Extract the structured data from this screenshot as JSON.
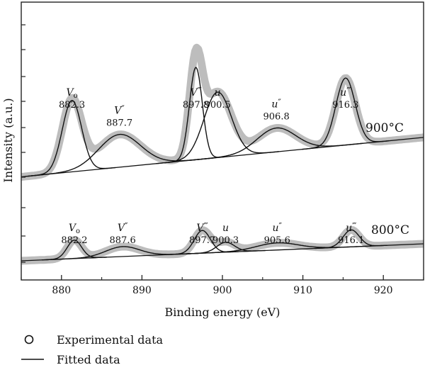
{
  "chart_data": {
    "type": "line",
    "xlabel": "Binding energy (eV)",
    "ylabel": "Intensity (a.u.)",
    "xlim": [
      875,
      925
    ],
    "x_ticks": [
      880,
      890,
      900,
      910,
      920
    ],
    "grid": false,
    "legend": {
      "placement": "bottom-left",
      "entries": [
        {
          "marker": "circle",
          "label": "Experimental data"
        },
        {
          "marker": "line",
          "label": "Fitted data"
        }
      ]
    },
    "series": [
      {
        "name": "900°C",
        "baseline": {
          "start": 0.05,
          "slope": 0.0053
        },
        "peaks": [
          {
            "symbol": "V",
            "sub": "o",
            "prime": "",
            "position": "882.3",
            "x": 881.3,
            "amplitude": 0.48,
            "width": 1.2
          },
          {
            "symbol": "V",
            "sub": "",
            "prime": "″",
            "position": "887.7",
            "x": 887.2,
            "amplitude": 0.22,
            "width": 2.6
          },
          {
            "symbol": "V",
            "sub": "",
            "prime": "‴",
            "position": "897.8",
            "x": 896.7,
            "amplitude": 0.62,
            "width": 0.8
          },
          {
            "symbol": "u",
            "sub": "",
            "prime": "",
            "position": "900.5",
            "x": 899.4,
            "amplitude": 0.44,
            "width": 1.7
          },
          {
            "symbol": "u",
            "sub": "",
            "prime": "″",
            "position": "906.8",
            "x": 906.7,
            "amplitude": 0.16,
            "width": 2.4
          },
          {
            "symbol": "u",
            "sub": "",
            "prime": "‴",
            "position": "916.3",
            "x": 915.3,
            "amplitude": 0.45,
            "width": 1.2
          }
        ]
      },
      {
        "name": "800°C",
        "baseline": {
          "start": 0.02,
          "slope": 0.0024
        },
        "peaks": [
          {
            "symbol": "V",
            "sub": "o",
            "prime": "",
            "position": "882.2",
            "x": 881.6,
            "amplitude": 0.13,
            "width": 0.9
          },
          {
            "symbol": "V",
            "sub": "",
            "prime": "″",
            "position": "887.6",
            "x": 887.6,
            "amplitude": 0.07,
            "width": 2.1
          },
          {
            "symbol": "V",
            "sub": "",
            "prime": "‴",
            "position": "897.7",
            "x": 897.5,
            "amplitude": 0.16,
            "width": 1.0
          },
          {
            "symbol": "u",
            "sub": "",
            "prime": "",
            "position": "900.3",
            "x": 900.4,
            "amplitude": 0.07,
            "width": 1.1
          },
          {
            "symbol": "u",
            "sub": "",
            "prime": "″",
            "position": "905.6",
            "x": 906.8,
            "amplitude": 0.05,
            "width": 2.6
          },
          {
            "symbol": "u",
            "sub": "",
            "prime": "‴",
            "position": "916.1",
            "x": 916.0,
            "amplitude": 0.12,
            "width": 1.0
          }
        ]
      }
    ]
  },
  "colors": {
    "experimental": "#bdbdbd",
    "fit": "#111111",
    "axis": "#222222"
  }
}
